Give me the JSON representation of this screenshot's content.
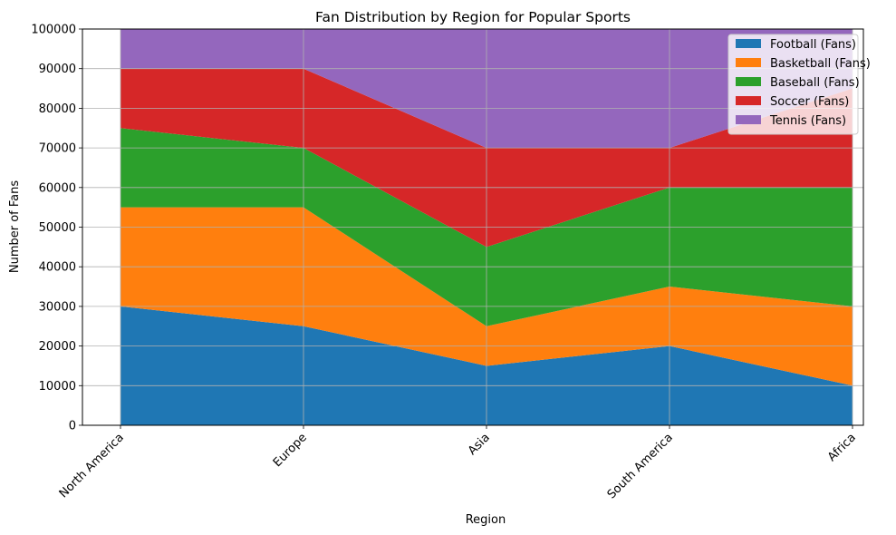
{
  "chart_data": {
    "type": "area",
    "stacked": true,
    "title": "Fan Distribution by Region for Popular Sports",
    "xlabel": "Region",
    "ylabel": "Number of Fans",
    "categories": [
      "North America",
      "Europe",
      "Asia",
      "South America",
      "Africa"
    ],
    "ylim": [
      0,
      100000
    ],
    "yticks": [
      0,
      10000,
      20000,
      30000,
      40000,
      50000,
      60000,
      70000,
      80000,
      90000,
      100000
    ],
    "grid": true,
    "legend_position": "top-right",
    "series": [
      {
        "name": "Football (Fans)",
        "color": "#1f77b4",
        "values": [
          30000,
          25000,
          15000,
          20000,
          10000
        ]
      },
      {
        "name": "Basketball (Fans)",
        "color": "#ff7f0e",
        "values": [
          25000,
          30000,
          10000,
          15000,
          20000
        ]
      },
      {
        "name": "Baseball (Fans)",
        "color": "#2ca02c",
        "values": [
          20000,
          15000,
          20000,
          25000,
          30000
        ]
      },
      {
        "name": "Soccer (Fans)",
        "color": "#d62728",
        "values": [
          15000,
          20000,
          25000,
          10000,
          25000
        ]
      },
      {
        "name": "Tennis (Fans)",
        "color": "#9467bd",
        "values": [
          10000,
          10000,
          30000,
          30000,
          15000
        ]
      }
    ]
  }
}
